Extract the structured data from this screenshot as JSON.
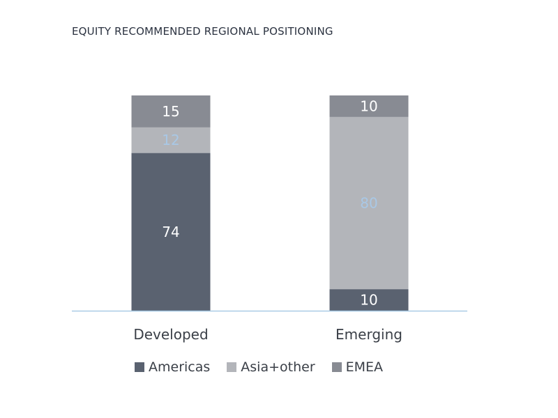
{
  "chart_data": {
    "type": "bar",
    "stacked": true,
    "title": "EQUITY RECOMMENDED REGIONAL POSITIONING",
    "categories": [
      "Developed",
      "Emerging"
    ],
    "series": [
      {
        "name": "Americas",
        "values": [
          74,
          10
        ],
        "color": "#5a6270",
        "label_color": "#ffffff"
      },
      {
        "name": "Asia+other",
        "values": [
          12,
          80
        ],
        "color": "#b3b5ba",
        "label_color": "#a9c8e6"
      },
      {
        "name": "EMEA",
        "values": [
          15,
          10
        ],
        "color": "#888b93",
        "label_color": "#ffffff"
      }
    ],
    "axis_color": "#a9cbe6",
    "legend_position": "bottom",
    "grid": false
  }
}
